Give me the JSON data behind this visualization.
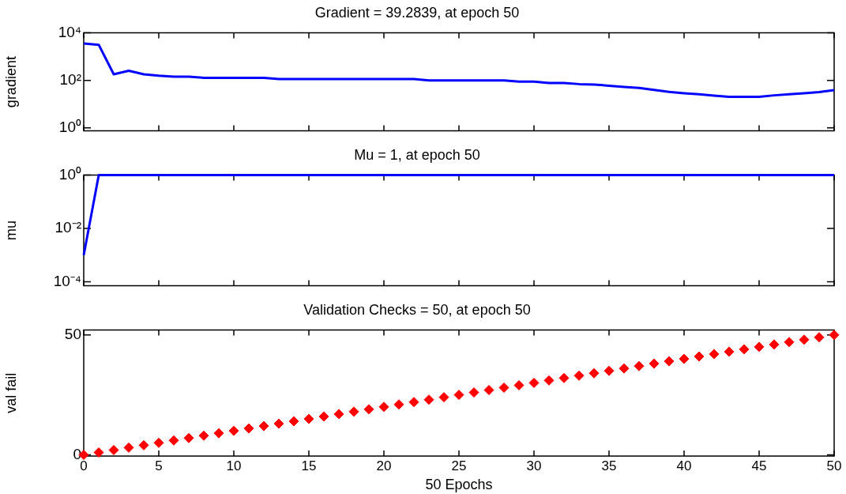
{
  "chart_data": [
    {
      "type": "line",
      "title": "Gradient = 39.2839, at epoch 50",
      "ylabel": "gradient",
      "log": "y",
      "grid": false,
      "legend": false,
      "marker": "none",
      "line_style": "solid",
      "tick_labels": "y",
      "xlim": [
        0,
        50
      ],
      "xticks": [
        0,
        5,
        10,
        15,
        20,
        25,
        30,
        35,
        40,
        45,
        50
      ],
      "ylim": [
        0.75,
        10000
      ],
      "yticks": [
        {
          "value": 1,
          "label": "10⁰"
        },
        {
          "value": 100,
          "label": "10²"
        },
        {
          "value": 10000,
          "label": "10⁴"
        }
      ],
      "x": [
        0,
        1,
        2,
        3,
        4,
        5,
        6,
        7,
        8,
        9,
        10,
        11,
        12,
        13,
        14,
        15,
        16,
        17,
        18,
        19,
        20,
        21,
        22,
        23,
        24,
        25,
        26,
        27,
        28,
        29,
        30,
        31,
        32,
        33,
        34,
        35,
        36,
        37,
        38,
        39,
        40,
        41,
        42,
        43,
        44,
        45,
        46,
        47,
        48,
        49,
        50
      ],
      "series": [
        {
          "color": "#0000ff",
          "values": [
            3600,
            3150,
            180,
            254,
            180,
            157,
            143,
            143,
            129,
            129,
            129,
            129,
            129,
            114,
            114,
            114,
            114,
            114,
            114,
            114,
            114,
            114,
            114,
            100,
            100,
            100,
            100,
            100,
            100,
            89,
            89,
            78,
            78,
            70,
            67,
            60,
            53,
            48,
            40,
            33,
            29,
            26,
            23,
            20.5,
            20.5,
            20.5,
            23.5,
            26,
            29,
            32,
            39.28
          ]
        }
      ]
    },
    {
      "type": "line",
      "title": "Mu = 1, at epoch 50",
      "ylabel": "mu",
      "log": "y",
      "grid": false,
      "legend": false,
      "marker": "none",
      "line_style": "solid",
      "tick_labels": "y",
      "xlim": [
        0,
        50
      ],
      "xticks": [
        0,
        5,
        10,
        15,
        20,
        25,
        30,
        35,
        40,
        45,
        50
      ],
      "ylim": [
        7.5e-05,
        1
      ],
      "yticks": [
        {
          "value": 0.0001,
          "label": "10⁻⁴"
        },
        {
          "value": 0.01,
          "label": "10⁻²"
        },
        {
          "value": 1,
          "label": "10⁰"
        }
      ],
      "x": [
        0,
        1,
        2,
        3,
        4,
        5,
        6,
        7,
        8,
        9,
        10,
        11,
        12,
        13,
        14,
        15,
        16,
        17,
        18,
        19,
        20,
        21,
        22,
        23,
        24,
        25,
        26,
        27,
        28,
        29,
        30,
        31,
        32,
        33,
        34,
        35,
        36,
        37,
        38,
        39,
        40,
        41,
        42,
        43,
        44,
        45,
        46,
        47,
        48,
        49,
        50
      ],
      "series": [
        {
          "color": "#0000ff",
          "values": [
            0.001,
            1,
            1,
            1,
            1,
            1,
            1,
            1,
            1,
            1,
            1,
            1,
            1,
            1,
            1,
            1,
            1,
            1,
            1,
            1,
            1,
            1,
            1,
            1,
            1,
            1,
            1,
            1,
            1,
            1,
            1,
            1,
            1,
            1,
            1,
            1,
            1,
            1,
            1,
            1,
            1,
            1,
            1,
            1,
            1,
            1,
            1,
            1,
            1,
            1,
            1
          ]
        }
      ]
    },
    {
      "type": "scatter",
      "title": "Validation Checks = 50, at epoch 50",
      "xlabel": "50 Epochs",
      "ylabel": "val fail",
      "grid": false,
      "legend": false,
      "marker": "diamond",
      "xlim": [
        0,
        50
      ],
      "xticks": [
        0,
        5,
        10,
        15,
        20,
        25,
        30,
        35,
        40,
        45,
        50
      ],
      "ylim": [
        -0.5,
        52
      ],
      "yticks": [
        0,
        50
      ],
      "x": [
        0,
        1,
        2,
        3,
        4,
        5,
        6,
        7,
        8,
        9,
        10,
        11,
        12,
        13,
        14,
        15,
        16,
        17,
        18,
        19,
        20,
        21,
        22,
        23,
        24,
        25,
        26,
        27,
        28,
        29,
        30,
        31,
        32,
        33,
        34,
        35,
        36,
        37,
        38,
        39,
        40,
        41,
        42,
        43,
        44,
        45,
        46,
        47,
        48,
        49,
        50
      ],
      "series": [
        {
          "color": "#ff0000",
          "values": [
            0,
            1,
            2,
            3,
            4,
            5,
            6,
            7,
            8,
            9,
            10,
            11,
            12,
            13,
            14,
            15,
            16,
            17,
            18,
            19,
            20,
            21,
            22,
            23,
            24,
            25,
            26,
            27,
            28,
            29,
            30,
            31,
            32,
            33,
            34,
            35,
            36,
            37,
            38,
            39,
            40,
            41,
            42,
            43,
            44,
            45,
            46,
            47,
            48,
            49,
            50
          ]
        }
      ]
    }
  ]
}
